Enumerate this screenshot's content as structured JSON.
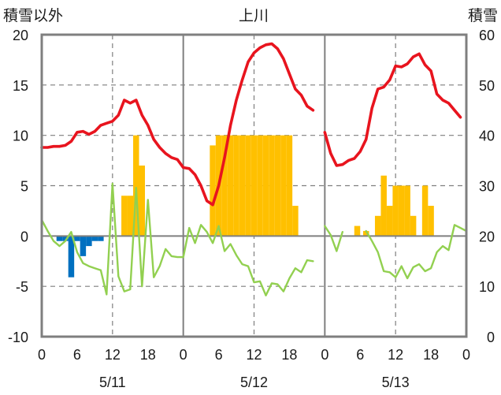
{
  "chart_data": {
    "type": "combo",
    "title": "上川",
    "left_axis_label": "積雪以外",
    "right_axis_label": "積雪",
    "left_ylim": [
      -10,
      20
    ],
    "left_ticks": [
      20,
      15,
      10,
      5,
      0,
      -5,
      -10
    ],
    "left_tick_labels": [
      "20",
      "15",
      "10",
      "5",
      "0",
      "-5",
      "-10"
    ],
    "right_ylim": [
      0,
      60
    ],
    "right_ticks": [
      60,
      50,
      40,
      30,
      20,
      10,
      0
    ],
    "right_tick_labels": [
      "60",
      "50",
      "40",
      "30",
      "20",
      "10",
      "0"
    ],
    "x_range_hours": [
      0,
      72
    ],
    "x_ticks": [
      0,
      6,
      12,
      18,
      24,
      30,
      36,
      42,
      48,
      54,
      60,
      66,
      72
    ],
    "x_tick_labels": [
      "0",
      "6",
      "12",
      "18",
      "0",
      "6",
      "12",
      "18",
      "0",
      "6",
      "12",
      "18",
      "0"
    ],
    "day_labels": [
      {
        "label": "5/11",
        "center_hour": 12
      },
      {
        "label": "5/12",
        "center_hour": 36
      },
      {
        "label": "5/13",
        "center_hour": 60
      }
    ],
    "grid_solid_hours": [
      24,
      48
    ],
    "grid_dashed_hours": [
      12,
      36,
      60
    ],
    "grid_dashed_values_left": [
      15,
      10,
      5,
      -5
    ],
    "colors": {
      "temperature": "#e8141e",
      "wind": "#92d050",
      "snowfall": "#ffc000",
      "snowdepth": "#0070c0",
      "frame": "#7f7f7f",
      "grid": "#7f7f7f"
    },
    "series": [
      {
        "key": "temperature",
        "type": "line",
        "axis": "left",
        "points": [
          [
            0,
            8.8
          ],
          [
            1,
            8.8
          ],
          [
            2,
            8.9
          ],
          [
            3,
            8.9
          ],
          [
            4,
            9.0
          ],
          [
            5,
            9.4
          ],
          [
            6,
            10.3
          ],
          [
            7,
            10.4
          ],
          [
            8,
            10.1
          ],
          [
            9,
            10.4
          ],
          [
            10,
            11.0
          ],
          [
            11,
            11.2
          ],
          [
            12,
            11.4
          ],
          [
            13,
            12.0
          ],
          [
            14,
            13.5
          ],
          [
            15,
            13.2
          ],
          [
            16,
            13.5
          ],
          [
            17,
            12.0
          ],
          [
            18,
            11.0
          ],
          [
            19,
            9.6
          ],
          [
            20,
            8.8
          ],
          [
            21,
            8.2
          ],
          [
            22,
            7.8
          ],
          [
            23,
            7.6
          ],
          [
            24,
            6.8
          ],
          [
            25,
            6.7
          ],
          [
            26,
            6.1
          ],
          [
            27,
            5.0
          ],
          [
            28,
            3.5
          ],
          [
            29,
            3.1
          ],
          [
            30,
            5.0
          ],
          [
            31,
            7.8
          ],
          [
            32,
            11.0
          ],
          [
            33,
            13.5
          ],
          [
            34,
            15.5
          ],
          [
            35,
            17.3
          ],
          [
            36,
            18.2
          ],
          [
            37,
            18.7
          ],
          [
            38,
            19.0
          ],
          [
            39,
            19.1
          ],
          [
            40,
            18.6
          ],
          [
            41,
            17.6
          ],
          [
            42,
            16.1
          ],
          [
            43,
            14.6
          ],
          [
            44,
            14.0
          ],
          [
            45,
            12.9
          ],
          [
            46,
            12.5
          ]
        ],
        "break_after_hour": 46,
        "points_2": [
          [
            48,
            10.3
          ],
          [
            49,
            8.2
          ],
          [
            50,
            7.0
          ],
          [
            51,
            7.1
          ],
          [
            52,
            7.5
          ],
          [
            53,
            7.7
          ],
          [
            54,
            8.4
          ],
          [
            55,
            9.6
          ],
          [
            56,
            12.7
          ],
          [
            57,
            14.6
          ],
          [
            58,
            14.8
          ],
          [
            59,
            15.5
          ],
          [
            60,
            16.9
          ],
          [
            61,
            16.8
          ],
          [
            62,
            17.1
          ],
          [
            63,
            17.8
          ],
          [
            64,
            18.1
          ],
          [
            65,
            17.0
          ],
          [
            66,
            16.4
          ],
          [
            67,
            14.1
          ],
          [
            68,
            13.5
          ],
          [
            69,
            13.2
          ],
          [
            70,
            12.5
          ],
          [
            71,
            11.8
          ]
        ]
      },
      {
        "key": "wind",
        "type": "line",
        "axis": "left",
        "points": [
          [
            0,
            1.6
          ],
          [
            1,
            0.5
          ],
          [
            2,
            -0.5
          ],
          [
            3,
            -1.0
          ],
          [
            4,
            -0.5
          ],
          [
            5,
            0.4
          ],
          [
            6,
            -1.6
          ],
          [
            7,
            -2.7
          ],
          [
            8,
            -3.0
          ],
          [
            9,
            -3.2
          ],
          [
            10,
            -3.4
          ],
          [
            11,
            -5.8
          ],
          [
            12,
            5.2
          ],
          [
            13,
            -4.0
          ],
          [
            14,
            -5.5
          ],
          [
            15,
            -5.3
          ],
          [
            16,
            4.8
          ],
          [
            17,
            -5.0
          ],
          [
            18,
            3.6
          ],
          [
            19,
            -4.1
          ],
          [
            20,
            -3.0
          ],
          [
            21,
            -1.3
          ],
          [
            22,
            -2.0
          ],
          [
            23,
            -2.1
          ],
          [
            24,
            -2.1
          ],
          [
            25,
            0.8
          ],
          [
            26,
            -0.7
          ],
          [
            27,
            1.1
          ],
          [
            28,
            0.4
          ],
          [
            29,
            -0.7
          ],
          [
            30,
            1.0
          ],
          [
            31,
            -1.5
          ],
          [
            32,
            -0.8
          ],
          [
            33,
            -1.9
          ],
          [
            34,
            -2.8
          ],
          [
            35,
            -3.0
          ],
          [
            36,
            -4.6
          ],
          [
            37,
            -4.5
          ],
          [
            38,
            -5.9
          ],
          [
            39,
            -4.7
          ],
          [
            40,
            -4.8
          ],
          [
            41,
            -5.5
          ],
          [
            42,
            -4.2
          ],
          [
            43,
            -3.2
          ],
          [
            44,
            -3.6
          ],
          [
            45,
            -2.4
          ],
          [
            46,
            -2.5
          ]
        ],
        "points_2": [
          [
            48,
            1.0
          ],
          [
            49,
            0.1
          ],
          [
            50,
            -1.5
          ],
          [
            51,
            0.4
          ]
        ],
        "points_3": [
          [
            55,
            0.5
          ],
          [
            56,
            -0.5
          ],
          [
            57,
            -1.6
          ],
          [
            58,
            -3.5
          ],
          [
            59,
            -3.6
          ],
          [
            60,
            -4.1
          ],
          [
            61,
            -3.0
          ],
          [
            62,
            -4.2
          ],
          [
            63,
            -3.1
          ],
          [
            64,
            -2.8
          ],
          [
            65,
            -3.5
          ],
          [
            66,
            -3.2
          ],
          [
            67,
            -1.6
          ],
          [
            68,
            -1.0
          ],
          [
            69,
            -1.4
          ],
          [
            70,
            1.1
          ],
          [
            71,
            0.8
          ],
          [
            72,
            0.5
          ]
        ]
      },
      {
        "key": "snowfall",
        "type": "bar",
        "axis": "left",
        "bars": [
          [
            13.5,
            14.5,
            4
          ],
          [
            14.5,
            15.5,
            4
          ],
          [
            15.5,
            16.5,
            10
          ],
          [
            16.5,
            17.5,
            7
          ],
          [
            28.5,
            29.5,
            9
          ],
          [
            29.5,
            30.5,
            10
          ],
          [
            30.5,
            31.5,
            10
          ],
          [
            31.5,
            32.5,
            10
          ],
          [
            32.5,
            33.5,
            10
          ],
          [
            33.5,
            34.5,
            10
          ],
          [
            34.5,
            35.5,
            10
          ],
          [
            35.5,
            36.5,
            10
          ],
          [
            36.5,
            37.5,
            10
          ],
          [
            37.5,
            38.5,
            10
          ],
          [
            38.5,
            39.5,
            10
          ],
          [
            39.5,
            40.5,
            10
          ],
          [
            40.5,
            41.5,
            10
          ],
          [
            41.5,
            42.5,
            10
          ],
          [
            42.5,
            43.5,
            3
          ],
          [
            53.0,
            54.0,
            1
          ],
          [
            54.5,
            55.5,
            0.5
          ],
          [
            56.5,
            57.5,
            2
          ],
          [
            57.5,
            58.5,
            6
          ],
          [
            58.5,
            59.5,
            3
          ],
          [
            59.5,
            60.5,
            5
          ],
          [
            60.5,
            61.5,
            5
          ],
          [
            61.5,
            62.5,
            5
          ],
          [
            62.5,
            63.5,
            2
          ],
          [
            64.5,
            65.5,
            5
          ],
          [
            65.5,
            66.5,
            3
          ]
        ]
      },
      {
        "key": "snowdepth",
        "type": "bar",
        "axis": "left",
        "bars": [
          [
            2.5,
            3.5,
            -0.5
          ],
          [
            3.5,
            4.5,
            -0.5
          ],
          [
            4.5,
            5.5,
            -4.1
          ],
          [
            5.5,
            6.5,
            -0.5
          ],
          [
            6.5,
            7.5,
            -2.0
          ],
          [
            7.5,
            8.5,
            -1.0
          ],
          [
            8.5,
            9.5,
            -0.5
          ],
          [
            9.5,
            10.5,
            -0.5
          ]
        ]
      }
    ]
  }
}
